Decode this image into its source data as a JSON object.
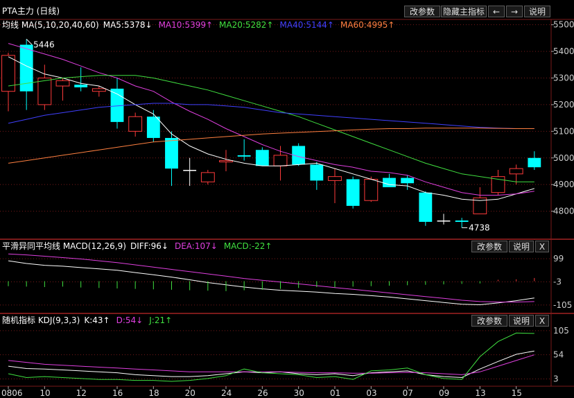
{
  "header": {
    "title": "PTA主力 (日线)",
    "buttons": {
      "params": "改参数",
      "hide": "隐藏主指标",
      "left": "←",
      "right": "→",
      "help": "说明"
    }
  },
  "ma_legend": [
    {
      "text": "均线 MA(5,10,20,40,60)",
      "color": "#ffffff"
    },
    {
      "text": "MA5:5378↓",
      "color": "#ffffff"
    },
    {
      "text": "MA10:5399↑",
      "color": "#e040e0"
    },
    {
      "text": "MA20:5282↑",
      "color": "#40e040"
    },
    {
      "text": "MA40:5144↑",
      "color": "#4040ff"
    },
    {
      "text": "MA60:4995↑",
      "color": "#ff8040"
    }
  ],
  "macd_legend": [
    {
      "text": "平滑异同平均线 MACD(12,26,9)",
      "color": "#ffffff"
    },
    {
      "text": "DIFF:96↓",
      "color": "#ffffff"
    },
    {
      "text": "DEA:107↓",
      "color": "#e040e0"
    },
    {
      "text": "MACD:-22↑",
      "color": "#40e040"
    }
  ],
  "kdj_legend": [
    {
      "text": "随机指标 KDJ(9,3,3)",
      "color": "#ffffff"
    },
    {
      "text": "K:43↑",
      "color": "#ffffff"
    },
    {
      "text": "D:54↓",
      "color": "#e040e0"
    },
    {
      "text": "J:21↑",
      "color": "#40e040"
    }
  ],
  "sub_buttons": {
    "params": "改参数",
    "help": "说明",
    "close": "X"
  },
  "colors": {
    "up": "#ff3b3b",
    "down": "#00ffff",
    "grid": "#7a1a1a"
  },
  "chart_data": [
    {
      "type": "candlestick",
      "price_ticks": [
        "5500",
        "5400",
        "5300",
        "5200",
        "5100",
        "5000",
        "4900",
        "4800"
      ],
      "ylim": [
        4700,
        5520
      ],
      "x_ticks": [
        {
          "index": 0,
          "label": "0806"
        },
        {
          "index": 2,
          "label": "10"
        },
        {
          "index": 4,
          "label": "12"
        },
        {
          "index": 6,
          "label": "16"
        },
        {
          "index": 8,
          "label": "18"
        },
        {
          "index": 10,
          "label": "20"
        },
        {
          "index": 12,
          "label": "24"
        },
        {
          "index": 14,
          "label": "26"
        },
        {
          "index": 16,
          "label": "30"
        },
        {
          "index": 18,
          "label": "01"
        },
        {
          "index": 20,
          "label": "03"
        },
        {
          "index": 22,
          "label": "07"
        },
        {
          "index": 24,
          "label": "09"
        },
        {
          "index": 26,
          "label": "13"
        },
        {
          "index": 28,
          "label": "15"
        }
      ],
      "annotations": [
        {
          "index": 1,
          "value": 5446,
          "label": "5446"
        },
        {
          "index": 25,
          "value": 4738,
          "label": "4738"
        }
      ],
      "candles": [
        {
          "o": 5250,
          "h": 5395,
          "l": 5175,
          "c": 5385
        },
        {
          "o": 5425,
          "h": 5446,
          "l": 5180,
          "c": 5250
        },
        {
          "o": 5200,
          "h": 5350,
          "l": 5180,
          "c": 5300
        },
        {
          "o": 5270,
          "h": 5300,
          "l": 5215,
          "c": 5290
        },
        {
          "o": 5275,
          "h": 5340,
          "l": 5250,
          "c": 5265
        },
        {
          "o": 5250,
          "h": 5270,
          "l": 5230,
          "c": 5260
        },
        {
          "o": 5260,
          "h": 5300,
          "l": 5110,
          "c": 5135
        },
        {
          "o": 5100,
          "h": 5170,
          "l": 5080,
          "c": 5155
        },
        {
          "o": 5155,
          "h": 5180,
          "l": 5060,
          "c": 5075
        },
        {
          "o": 5075,
          "h": 5100,
          "l": 4895,
          "c": 4960
        },
        {
          "o": 4955,
          "h": 5000,
          "l": 4895,
          "c": 4955
        },
        {
          "o": 4910,
          "h": 4955,
          "l": 4900,
          "c": 4945
        },
        {
          "o": 4985,
          "h": 5030,
          "l": 4950,
          "c": 4990
        },
        {
          "o": 5010,
          "h": 5070,
          "l": 4990,
          "c": 5005
        },
        {
          "o": 5030,
          "h": 5040,
          "l": 4975,
          "c": 4970
        },
        {
          "o": 4970,
          "h": 5045,
          "l": 4915,
          "c": 5010
        },
        {
          "o": 5045,
          "h": 5055,
          "l": 4970,
          "c": 4975
        },
        {
          "o": 4975,
          "h": 4985,
          "l": 4880,
          "c": 4915
        },
        {
          "o": 4915,
          "h": 4960,
          "l": 4830,
          "c": 4930
        },
        {
          "o": 4920,
          "h": 4930,
          "l": 4810,
          "c": 4820
        },
        {
          "o": 4840,
          "h": 4930,
          "l": 4835,
          "c": 4920
        },
        {
          "o": 4925,
          "h": 4940,
          "l": 4890,
          "c": 4890
        },
        {
          "o": 4925,
          "h": 4935,
          "l": 4880,
          "c": 4905
        },
        {
          "o": 4870,
          "h": 4875,
          "l": 4745,
          "c": 4760
        },
        {
          "o": 4765,
          "h": 4790,
          "l": 4750,
          "c": 4765
        },
        {
          "o": 4765,
          "h": 4775,
          "l": 4738,
          "c": 4760
        },
        {
          "o": 4790,
          "h": 4890,
          "l": 4790,
          "c": 4850
        },
        {
          "o": 4870,
          "h": 4955,
          "l": 4860,
          "c": 4930
        },
        {
          "o": 4940,
          "h": 4975,
          "l": 4900,
          "c": 4960
        },
        {
          "o": 5000,
          "h": 5025,
          "l": 4955,
          "c": 4965
        }
      ],
      "series": [
        {
          "key": "MA5",
          "color": "#ffffff",
          "values": [
            5380,
            5345,
            5315,
            5300,
            5280,
            5270,
            5240,
            5200,
            5165,
            5090,
            5045,
            5015,
            4995,
            4980,
            4970,
            4970,
            4975,
            4980,
            4960,
            4940,
            4920,
            4900,
            4895,
            4870,
            4860,
            4845,
            4840,
            4845,
            4865,
            4885
          ]
        },
        {
          "key": "MA10",
          "color": "#e040e0",
          "values": [
            5430,
            5410,
            5390,
            5370,
            5345,
            5320,
            5300,
            5270,
            5250,
            5210,
            5175,
            5145,
            5110,
            5080,
            5050,
            5025,
            5005,
            4990,
            4975,
            4965,
            4950,
            4945,
            4935,
            4910,
            4890,
            4870,
            4860,
            4860,
            4865,
            4875
          ]
        },
        {
          "key": "MA20",
          "color": "#40e040",
          "values": [
            5270,
            5280,
            5290,
            5300,
            5305,
            5310,
            5310,
            5310,
            5300,
            5285,
            5270,
            5255,
            5235,
            5215,
            5195,
            5175,
            5155,
            5130,
            5105,
            5080,
            5055,
            5030,
            5005,
            4980,
            4960,
            4940,
            4930,
            4920,
            4910,
            4910
          ]
        },
        {
          "key": "MA40",
          "color": "#4040ff",
          "values": [
            5130,
            5145,
            5160,
            5170,
            5180,
            5190,
            5195,
            5200,
            5205,
            5205,
            5200,
            5200,
            5195,
            5190,
            5180,
            5170,
            5165,
            5160,
            5155,
            5150,
            5145,
            5140,
            5135,
            5130,
            5125,
            5120,
            5115,
            5112,
            5110,
            5110
          ]
        },
        {
          "key": "MA60",
          "color": "#ff8040",
          "values": [
            4980,
            4990,
            5000,
            5010,
            5020,
            5030,
            5040,
            5050,
            5060,
            5065,
            5070,
            5075,
            5080,
            5085,
            5090,
            5093,
            5096,
            5099,
            5102,
            5105,
            5108,
            5110,
            5110,
            5112,
            5112,
            5112,
            5112,
            5111,
            5110,
            5110
          ]
        }
      ]
    },
    {
      "type": "line",
      "name": "MACD",
      "ticks": [
        "99",
        "-3",
        "-105"
      ],
      "ylim": [
        -130,
        130
      ],
      "series": [
        {
          "key": "DIFF",
          "color": "#ffffff",
          "values": [
            90,
            78,
            70,
            66,
            60,
            54,
            48,
            38,
            28,
            18,
            6,
            -6,
            -16,
            -26,
            -34,
            -40,
            -44,
            -48,
            -54,
            -58,
            -64,
            -70,
            -78,
            -86,
            -94,
            -102,
            -104,
            -96,
            -86,
            -74
          ]
        },
        {
          "key": "DEA",
          "color": "#e040e0",
          "values": [
            120,
            116,
            110,
            104,
            98,
            90,
            82,
            72,
            62,
            52,
            42,
            32,
            22,
            12,
            4,
            -4,
            -12,
            -20,
            -28,
            -36,
            -44,
            -52,
            -60,
            -68,
            -76,
            -84,
            -90,
            -92,
            -92,
            -90
          ]
        },
        {
          "key": "MACD",
          "color": "#40e040",
          "type": "bar",
          "values": [
            -22,
            -24,
            -26,
            -24,
            -28,
            -30,
            -32,
            -34,
            -36,
            -38,
            -40,
            -42,
            -44,
            -40,
            -38,
            -34,
            -30,
            -26,
            -28,
            -24,
            -22,
            -20,
            -18,
            -16,
            -14,
            -12,
            -10,
            6,
            8,
            14
          ]
        }
      ]
    },
    {
      "type": "line",
      "name": "KDJ",
      "ticks": [
        "105",
        "54",
        "3"
      ],
      "ylim": [
        -5,
        115
      ],
      "series": [
        {
          "key": "K",
          "color": "#ffffff",
          "values": [
            30,
            25,
            24,
            22,
            20,
            18,
            16,
            12,
            10,
            8,
            8,
            10,
            14,
            18,
            16,
            18,
            14,
            12,
            14,
            10,
            16,
            18,
            20,
            12,
            8,
            6,
            24,
            40,
            55,
            62
          ]
        },
        {
          "key": "D",
          "color": "#e040e0",
          "values": [
            42,
            38,
            34,
            32,
            30,
            28,
            26,
            24,
            22,
            20,
            18,
            18,
            18,
            18,
            18,
            18,
            17,
            16,
            16,
            15,
            15,
            16,
            17,
            16,
            14,
            12,
            18,
            30,
            42,
            54
          ]
        },
        {
          "key": "J",
          "color": "#40e040",
          "values": [
            14,
            6,
            8,
            6,
            4,
            2,
            2,
            0,
            0,
            -2,
            0,
            4,
            10,
            24,
            16,
            14,
            12,
            6,
            8,
            2,
            20,
            22,
            26,
            12,
            4,
            2,
            50,
            82,
            100,
            99
          ]
        }
      ]
    }
  ]
}
